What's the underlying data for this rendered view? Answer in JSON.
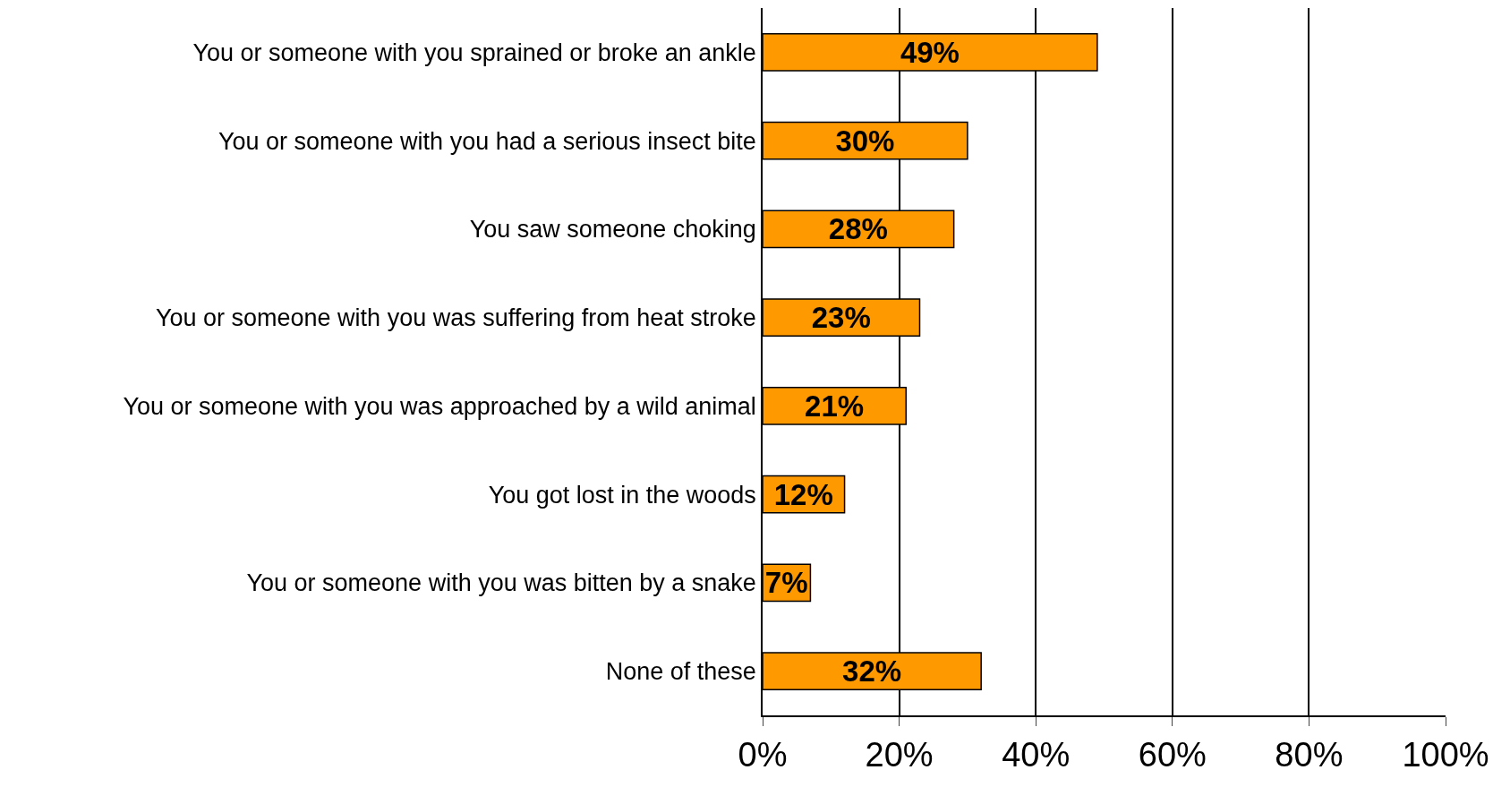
{
  "chart_data": {
    "type": "bar",
    "orientation": "horizontal",
    "categories": [
      "You or someone with you sprained or broke an ankle",
      "You or someone with you had a serious insect bite",
      "You saw someone choking",
      "You or someone with you was suffering from heat stroke",
      "You or someone with you was approached by a wild animal",
      "You got lost in the woods",
      "You or someone with you was bitten by a snake",
      "None of these"
    ],
    "values": [
      49,
      30,
      28,
      23,
      21,
      12,
      7,
      32
    ],
    "value_labels": [
      "49%",
      "30%",
      "28%",
      "23%",
      "21%",
      "12%",
      "7%",
      "32%"
    ],
    "color": "#ff9900",
    "xlim": [
      0,
      100
    ],
    "xticks": [
      {
        "value": 0,
        "label": "0%"
      },
      {
        "value": 20,
        "label": "20%"
      },
      {
        "value": 40,
        "label": "40%"
      },
      {
        "value": 60,
        "label": "60%"
      },
      {
        "value": 80,
        "label": "80%"
      },
      {
        "value": 100,
        "label": "100%"
      }
    ],
    "grid": "x",
    "legend": false
  }
}
